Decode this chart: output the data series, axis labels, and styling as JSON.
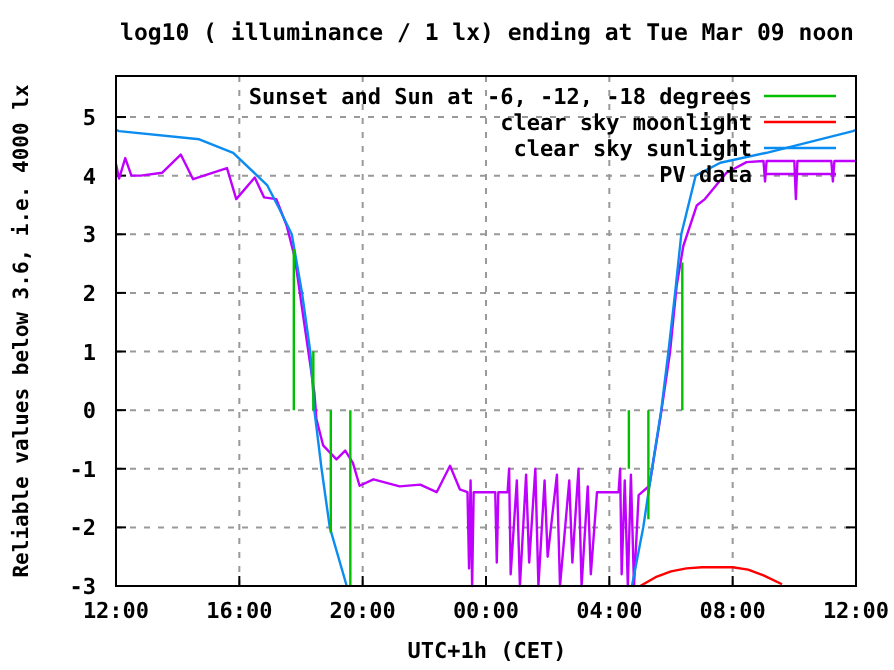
{
  "chart_data": {
    "type": "line",
    "title": "log10 ( illuminance / 1 lx) ending at Tue Mar 09 noon",
    "xlabel": "UTC+1h (CET)",
    "ylabel": "Reliable values below 3.6, i.e. 4000 lx",
    "xlim": [
      "--03-08T12:00",
      "--03-09T12:00"
    ],
    "ylim": [
      -3,
      5.7
    ],
    "xticks": [
      {
        "value": "--03-08T12:00",
        "label": "12:00"
      },
      {
        "value": "--03-08T16:00",
        "label": "16:00"
      },
      {
        "value": "--03-08T20:00",
        "label": "20:00"
      },
      {
        "value": "--03-09T00:00",
        "label": "00:00"
      },
      {
        "value": "--03-09T04:00",
        "label": "04:00"
      },
      {
        "value": "--03-09T08:00",
        "label": "08:00"
      },
      {
        "value": "--03-09T12:00",
        "label": "12:00"
      }
    ],
    "yticks": [
      -3,
      -2,
      -1,
      0,
      1,
      2,
      3,
      4,
      5
    ],
    "grid": true,
    "legend": "top right",
    "line_style": "solid",
    "series": [
      {
        "name": "Sunset and Sun at -6, -12, -18 degrees",
        "color": "#00c000",
        "x": [
          "--03-08T17:46",
          "--03-08T17:46",
          "--03-08T18:00",
          "--03-08T18:24",
          "--03-08T18:24",
          "--03-08T18:40",
          "--03-08T18:58",
          "--03-08T18:58",
          "--03-08T19:20",
          "--03-08T19:36",
          "--03-08T19:36",
          "--03-09T00:00",
          "--03-09T04:38",
          "--03-09T04:38",
          "--03-09T05:00",
          "--03-09T05:16",
          "--03-09T05:16",
          "--03-09T06:00",
          "--03-09T06:22",
          "--03-09T06:22"
        ],
        "values": [
          0,
          2.75,
          null,
          0,
          1.0,
          null,
          0,
          -2.09,
          null,
          0,
          -3,
          null,
          0,
          -1.0,
          null,
          0,
          -1.86,
          null,
          0,
          2.52
        ]
      },
      {
        "name": "clear sky moonlight",
        "color": "#ff0000",
        "x": [
          "--03-09T05:00",
          "--03-09T05:30",
          "--03-09T06:00",
          "--03-09T06:30",
          "--03-09T07:00",
          "--03-09T07:30",
          "--03-09T08:00",
          "--03-09T08:30",
          "--03-09T09:00",
          "--03-09T09:36"
        ],
        "values": [
          -3,
          -2.85,
          -2.75,
          -2.7,
          -2.68,
          -2.68,
          -2.68,
          -2.72,
          -2.82,
          -2.97
        ]
      },
      {
        "name": "clear sky sunlight",
        "color": "#0a8cf0",
        "x": [
          "--03-08T12:00",
          "--03-08T12:06",
          "--03-08T14:42",
          "--03-08T15:48",
          "--03-08T16:54",
          "--03-08T17:18",
          "--03-08T17:42",
          "--03-08T18:02",
          "--03-08T18:18",
          "--03-08T18:26",
          "--03-08T18:40",
          "--03-08T18:56",
          "--03-08T19:29",
          "--03-09T00:00",
          "--03-09T04:44",
          "--03-09T05:06",
          "--03-09T05:23",
          "--03-09T05:41",
          "--03-09T05:55",
          "--03-09T06:08",
          "--03-09T06:20",
          "--03-09T06:48",
          "--03-09T07:36",
          "--03-09T09:06",
          "--03-09T11:54",
          "--03-09T12:00"
        ],
        "values": [
          4.78,
          4.76,
          4.62,
          4.39,
          3.84,
          3.43,
          3.0,
          2.0,
          1.0,
          0,
          -1,
          -2,
          -3,
          null,
          -3,
          -2,
          -1,
          0,
          1,
          2,
          3,
          4,
          4.22,
          4.39,
          4.76,
          4.78
        ]
      },
      {
        "name": "PV data",
        "color": "#c000ff",
        "x": [
          "--03-08T12:00",
          "--03-08T12:06",
          "--03-08T12:18",
          "--03-08T12:30",
          "--03-08T12:48",
          "--03-08T13:30",
          "--03-08T14:06",
          "--03-08T14:30",
          "--03-08T15:36",
          "--03-08T15:54",
          "--03-08T16:30",
          "--03-08T16:48",
          "--03-08T17:12",
          "--03-08T17:32",
          "--03-08T17:48",
          "--03-08T18:06",
          "--03-08T18:26",
          "--03-08T18:30",
          "--03-08T18:43",
          "--03-08T19:09",
          "--03-08T19:26",
          "--03-08T19:41",
          "--03-08T19:54",
          "--03-08T20:21",
          "--03-08T21:12",
          "--03-08T21:52",
          "--03-08T22:24",
          "--03-08T22:50",
          "--03-08T23:09",
          "--03-08T23:24",
          "--03-08T23:27",
          "--03-08T23:30",
          "--03-08T23:33",
          "--03-08T23:36",
          "--03-09T00:18",
          "--03-09T00:21",
          "--03-09T00:24",
          "--03-09T00:42",
          "--03-09T00:45",
          "--03-09T00:48",
          "--03-09T01:00",
          "--03-09T01:06",
          "--03-09T01:18",
          "--03-09T01:24",
          "--03-09T01:36",
          "--03-09T01:42",
          "--03-09T01:54",
          "--03-09T02:00",
          "--03-09T02:18",
          "--03-09T02:24",
          "--03-09T02:42",
          "--03-09T02:48",
          "--03-09T03:00",
          "--03-09T03:06",
          "--03-09T03:18",
          "--03-09T03:24",
          "--03-09T03:36",
          "--03-09T04:18",
          "--03-09T04:21",
          "--03-09T04:24",
          "--03-09T04:30",
          "--03-09T04:36",
          "--03-09T04:42",
          "--03-09T04:48",
          "--03-09T04:57",
          "--03-09T05:18",
          "--03-09T05:39",
          "--03-09T05:58",
          "--03-09T06:11",
          "--03-09T06:24",
          "--03-09T06:50",
          "--03-09T07:06",
          "--03-09T07:48",
          "--03-09T08:27",
          "--03-09T09:00",
          "--03-09T09:03",
          "--03-09T09:06",
          "--03-09T10:00",
          "--03-09T10:03",
          "--03-09T10:06",
          "--03-09T11:12",
          "--03-09T11:15",
          "--03-09T11:18",
          "--03-09T12:00"
        ],
        "values": [
          4.2,
          3.95,
          4.3,
          4.0,
          4.0,
          4.05,
          4.36,
          3.94,
          4.13,
          3.6,
          3.97,
          3.63,
          3.6,
          3.15,
          2.6,
          1.5,
          0.3,
          -0.15,
          -0.6,
          -0.84,
          -0.69,
          -0.9,
          -1.29,
          -1.18,
          -1.3,
          -1.27,
          -1.4,
          -0.95,
          -1.35,
          -1.4,
          -2.7,
          -1.2,
          -3,
          -1.4,
          -1.4,
          -2.6,
          -1.4,
          -1.4,
          -1.0,
          -2.8,
          -1.2,
          -3,
          -1.1,
          -2.6,
          -1.0,
          -3,
          -1.2,
          -2.5,
          -1.1,
          -3,
          -1.2,
          -2.6,
          -1.0,
          -3,
          -1.3,
          -2.8,
          -1.4,
          -1.4,
          -1.0,
          -2.8,
          -1.2,
          -3,
          -1.1,
          -3,
          -1.45,
          -1.29,
          -0.15,
          0.98,
          2.12,
          2.8,
          3.49,
          3.6,
          4.05,
          4.23,
          4.25,
          3.9,
          4.25,
          4.25,
          3.6,
          4.25,
          4.25,
          3.9,
          4.25,
          4.25
        ]
      }
    ]
  }
}
